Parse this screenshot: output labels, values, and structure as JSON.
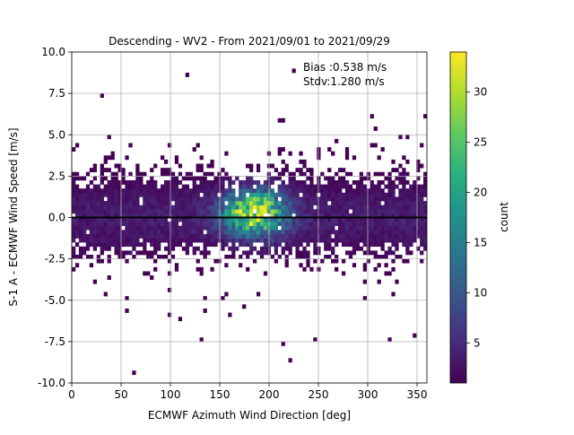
{
  "chart_data": {
    "type": "heatmap",
    "title": "Descending - WV2 - From 2021/09/01 to 2021/09/29",
    "xlabel": "ECMWF Azimuth Wind Direction [deg]",
    "ylabel": "S-1 A - ECMWF Wind Speed [m/s]",
    "xlim": [
      0,
      360
    ],
    "ylim": [
      -10,
      10
    ],
    "xticks": [
      0,
      50,
      100,
      150,
      200,
      250,
      300,
      350
    ],
    "yticks": [
      -10.0,
      -7.5,
      -5.0,
      -2.5,
      0.0,
      2.5,
      5.0,
      7.5,
      10.0
    ],
    "grid": true,
    "colormap": "viridis",
    "colorbar": {
      "label": "count",
      "min": 1,
      "max": 34,
      "ticks": [
        5,
        10,
        15,
        20,
        25,
        30
      ]
    },
    "bin_size": {
      "x": 3.6,
      "y": 0.25
    },
    "reference_line_y": 0.0,
    "annotations": {
      "bias": "Bias :0.538 m/s",
      "stdv": "Stdv:1.280 m/s"
    },
    "density_model": {
      "center": {
        "x": 185,
        "y": 0.3
      },
      "peak_count": 34,
      "background_count": 3,
      "spread_y": 1.3
    }
  }
}
